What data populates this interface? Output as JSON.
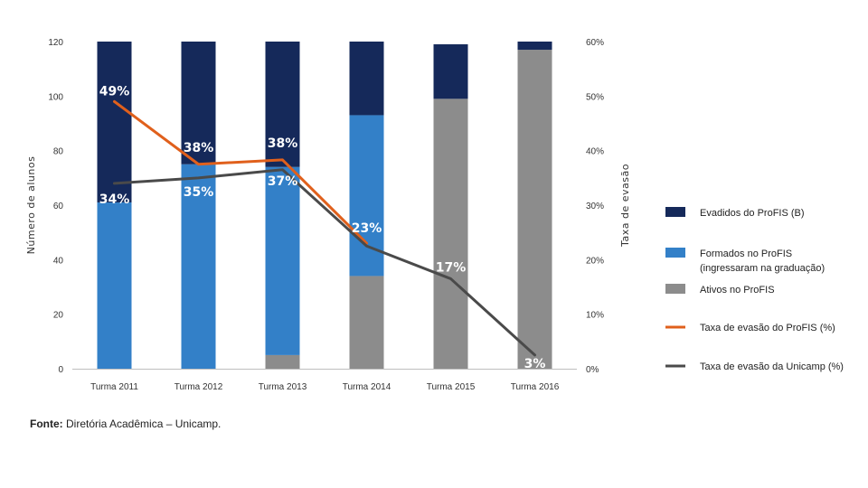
{
  "chart_data": {
    "type": "bar",
    "stacked": true,
    "categories": [
      "Turma 2011",
      "Turma 2012",
      "Turma 2013",
      "Turma 2014",
      "Turma 2015",
      "Turma 2016"
    ],
    "ylabel": "Número de alunos",
    "y2label": "Taxa de evasão",
    "ylim": [
      0,
      120
    ],
    "y2lim": [
      0,
      60
    ],
    "yticks": [
      "0",
      "20",
      "40",
      "60",
      "80",
      "100",
      "120"
    ],
    "y2ticks": [
      "0%",
      "10%",
      "20%",
      "30%",
      "40%",
      "50%",
      "60%"
    ],
    "bar_series": [
      {
        "name": "Ativos no ProFIS",
        "color": "#8c8c8c",
        "values": [
          0,
          0,
          5,
          34,
          99,
          117
        ]
      },
      {
        "name": "Formados no ProFIS (ingressaram na graduação)",
        "color": "#3380c8",
        "values": [
          61,
          75,
          69,
          59,
          0,
          0
        ]
      },
      {
        "name": "Evadidos do ProFIS (B)",
        "color": "#15295a",
        "values": [
          59,
          45,
          46,
          27,
          20,
          3
        ]
      }
    ],
    "line_series": [
      {
        "name": "Taxa de evasão do ProFIS (%)",
        "color": "#e0601c",
        "values": [
          49,
          37.5,
          38.3,
          23
        ],
        "labels": [
          "49%",
          "38%",
          "38%",
          "23%"
        ]
      },
      {
        "name": "Taxa de evasão da Unicamp (%)",
        "color": "#4a4a4a",
        "values": [
          34,
          35,
          36.5,
          22.5,
          16.5,
          2.5
        ],
        "labels": [
          "34%",
          "35%",
          "37%",
          "",
          "17%",
          "3%"
        ]
      }
    ],
    "legend": {
      "placement": "right",
      "items": [
        {
          "label": "Evadidos do ProFIS (B)",
          "color": "#15295a",
          "kind": "box"
        },
        {
          "label": "Formados no ProFIS",
          "label2": "(ingressaram na graduação)",
          "color": "#3380c8",
          "kind": "box"
        },
        {
          "label": "Ativos no ProFIS",
          "color": "#8c8c8c",
          "kind": "box"
        },
        {
          "label": "Taxa de evasão do ProFIS (%)",
          "color": "#e0601c",
          "kind": "line"
        },
        {
          "label": "Taxa de evasão da Unicamp (%)",
          "color": "#4a4a4a",
          "kind": "line"
        }
      ]
    },
    "grid": false
  },
  "source": {
    "prefix": "Fonte:",
    "text": " Diretória Acadêmica – Unicamp."
  }
}
